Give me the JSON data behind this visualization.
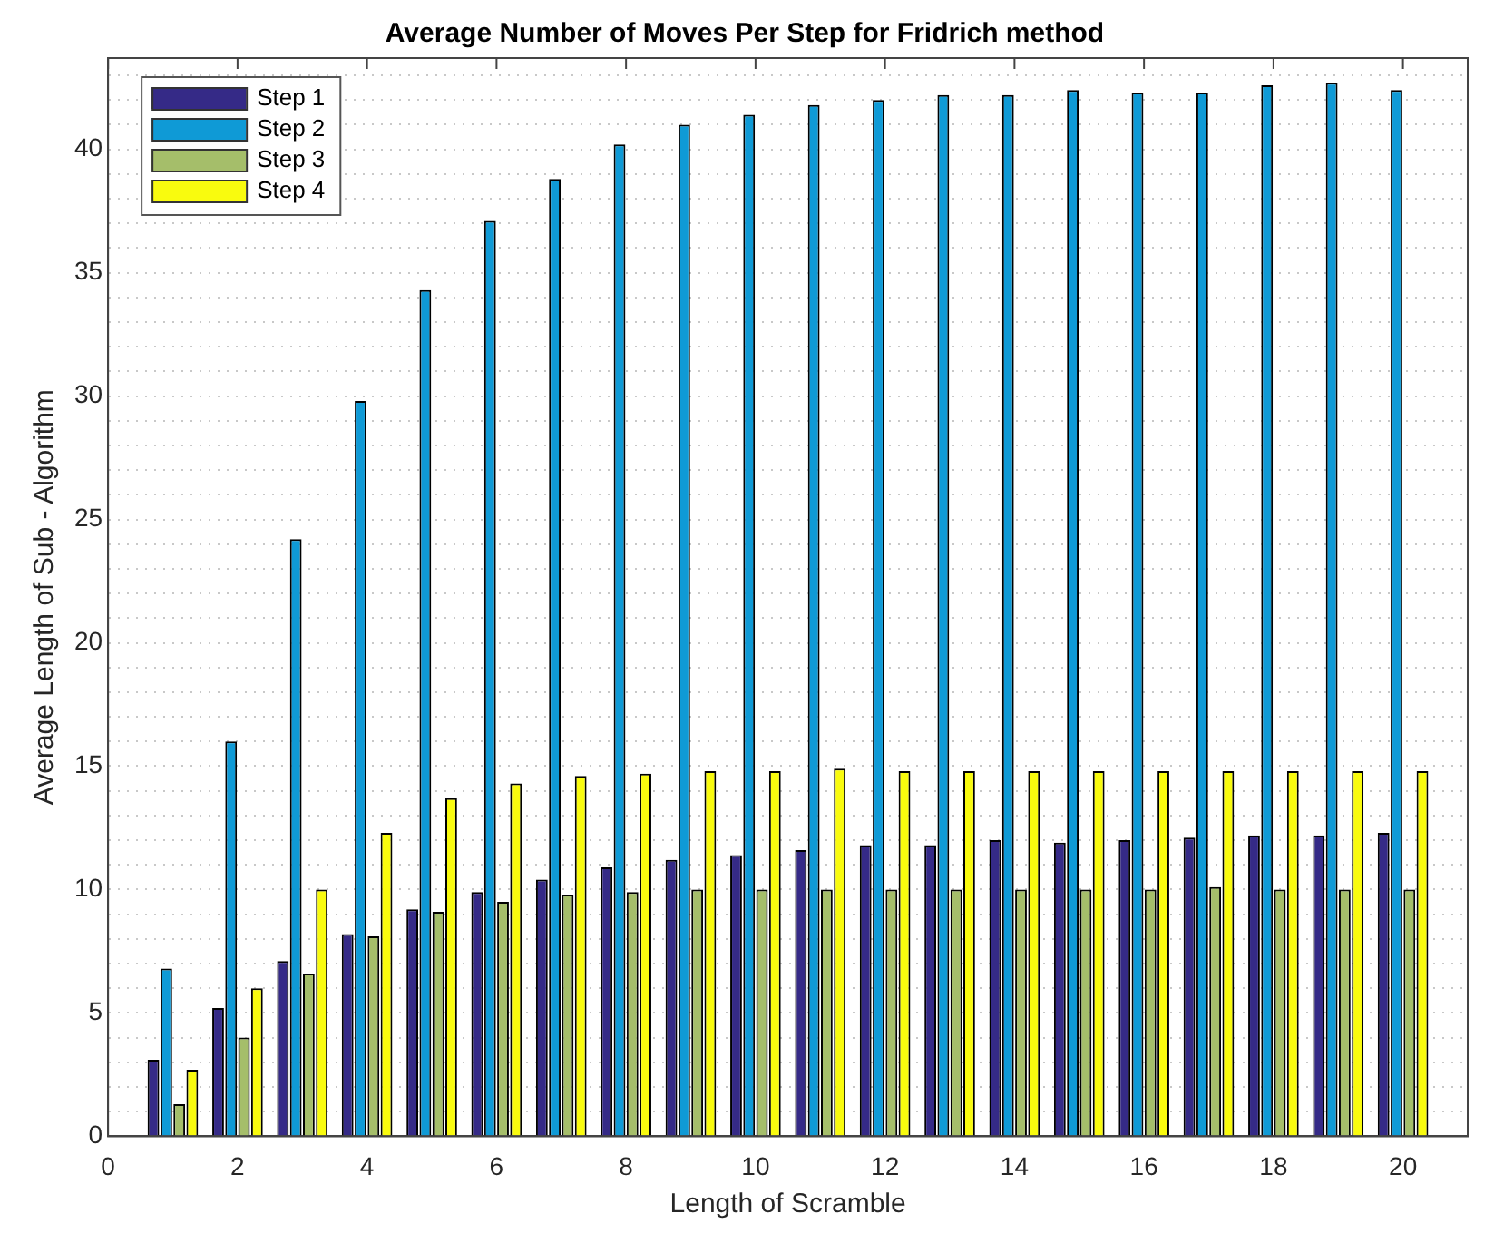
{
  "chart_data": {
    "type": "bar",
    "title": "Average Number of Moves Per Step for Fridrich method",
    "xlabel": "Length of Scramble",
    "ylabel": "Average Length of Sub - Algorithm",
    "x": [
      1,
      2,
      3,
      4,
      5,
      6,
      7,
      8,
      9,
      10,
      11,
      12,
      13,
      14,
      15,
      16,
      17,
      18,
      19,
      20
    ],
    "series": [
      {
        "name": "Step 1",
        "color": "#352a87",
        "values": [
          3.1,
          5.2,
          7.1,
          8.2,
          9.2,
          9.9,
          10.4,
          10.9,
          11.2,
          11.4,
          11.6,
          11.8,
          11.8,
          12.0,
          11.9,
          12.0,
          12.1,
          12.2,
          12.2,
          12.3
        ]
      },
      {
        "name": "Step 2",
        "color": "#0f9ad6",
        "values": [
          6.8,
          16.0,
          24.2,
          29.8,
          34.3,
          37.1,
          38.8,
          40.2,
          41.0,
          41.4,
          41.8,
          42.0,
          42.2,
          42.2,
          42.4,
          42.3,
          42.3,
          42.6,
          42.7,
          42.4
        ]
      },
      {
        "name": "Step 3",
        "color": "#a5be6a",
        "values": [
          1.3,
          4.0,
          6.6,
          8.1,
          9.1,
          9.5,
          9.8,
          9.9,
          10.0,
          10.0,
          10.0,
          10.0,
          10.0,
          10.0,
          10.0,
          10.0,
          10.1,
          10.0,
          10.0,
          10.0
        ]
      },
      {
        "name": "Step 4",
        "color": "#f9fb0e",
        "values": [
          2.7,
          6.0,
          10.0,
          12.3,
          13.7,
          14.3,
          14.6,
          14.7,
          14.8,
          14.8,
          14.9,
          14.8,
          14.8,
          14.8,
          14.8,
          14.8,
          14.8,
          14.8,
          14.8,
          14.8
        ]
      }
    ],
    "xlim": [
      0,
      21
    ],
    "xticks": [
      0,
      2,
      4,
      6,
      8,
      10,
      12,
      14,
      16,
      18,
      20
    ],
    "ylim": [
      0,
      43.7
    ],
    "yticks": [
      0,
      {
        "value": 1,
        "label": null
      },
      {
        "value": 2,
        "label": null
      },
      {
        "value": 3,
        "label": null
      },
      {
        "value": 4,
        "label": null
      },
      5,
      {
        "value": 6,
        "label": null
      },
      {
        "value": 7,
        "label": null
      },
      {
        "value": 8,
        "label": null
      },
      {
        "value": 9,
        "label": null
      },
      10,
      {
        "value": 11,
        "label": null
      },
      {
        "value": 12,
        "label": null
      },
      {
        "value": 13,
        "label": null
      },
      {
        "value": 14,
        "label": null
      },
      15,
      {
        "value": 16,
        "label": null
      },
      {
        "value": 17,
        "label": null
      },
      {
        "value": 18,
        "label": null
      },
      {
        "value": 19,
        "label": null
      },
      20,
      {
        "value": 21,
        "label": null
      },
      {
        "value": 22,
        "label": null
      },
      {
        "value": 23,
        "label": null
      },
      {
        "value": 24,
        "label": null
      },
      25,
      {
        "value": 26,
        "label": null
      },
      {
        "value": 27,
        "label": null
      },
      {
        "value": 28,
        "label": null
      },
      {
        "value": 29,
        "label": null
      },
      30,
      {
        "value": 31,
        "label": null
      },
      {
        "value": 32,
        "label": null
      },
      {
        "value": 33,
        "label": null
      },
      {
        "value": 34,
        "label": null
      },
      35,
      {
        "value": 36,
        "label": null
      },
      {
        "value": 37,
        "label": null
      },
      {
        "value": 38,
        "label": null
      },
      {
        "value": 39,
        "label": null
      },
      40,
      {
        "value": 41,
        "label": null
      },
      {
        "value": 42,
        "label": null
      },
      {
        "value": 43,
        "label": null
      }
    ],
    "grid": "y",
    "legend": "top left"
  }
}
